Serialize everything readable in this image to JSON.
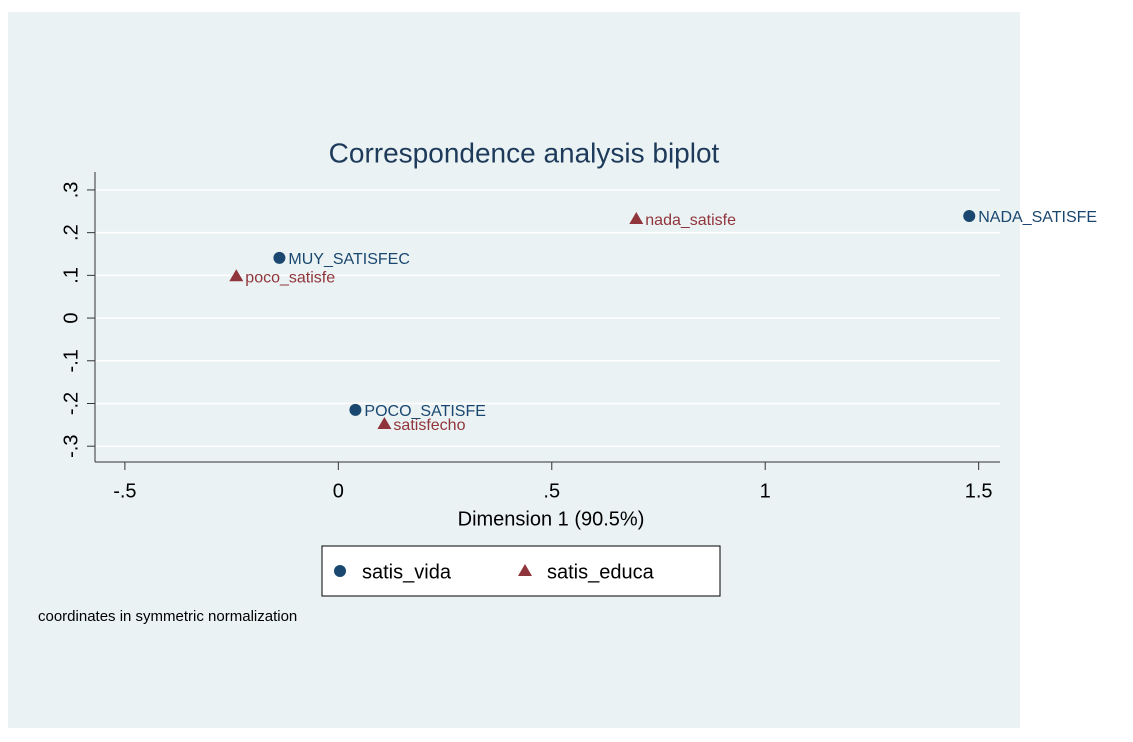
{
  "chart_data": {
    "type": "scatter",
    "title": "Correspondence analysis biplot",
    "xlabel": "Dimension 1 (90.5%)",
    "note": "coordinates in symmetric normalization",
    "xlim": [
      -0.57,
      1.55
    ],
    "ylim": [
      -0.337,
      0.342
    ],
    "xticks": [
      {
        "value": -0.5,
        "label": "-.5"
      },
      0,
      {
        "value": 0.5,
        "label": ".5"
      },
      1,
      1.5
    ],
    "yticks": [
      {
        "value": -0.3,
        "label": "-.3"
      },
      {
        "value": -0.2,
        "label": "-.2"
      },
      {
        "value": -0.1,
        "label": "-.1"
      },
      0,
      {
        "value": 0.1,
        "label": ".1"
      },
      {
        "value": 0.2,
        "label": ".2"
      },
      {
        "value": 0.3,
        "label": ".3"
      }
    ],
    "grid": true,
    "series": [
      {
        "name": "satis_vida",
        "color": "#1a476f",
        "marker": "circle",
        "labels": [
          "MUY_SATISFEC",
          "POCO_SATISFE",
          "NADA_SATISFE"
        ],
        "x": [
          -0.138,
          0.04,
          1.478
        ],
        "values": [
          0.141,
          -0.215,
          0.239
        ]
      },
      {
        "name": "satis_educa",
        "color": "#90353b",
        "marker": "triangle",
        "labels": [
          "poco_satisfe",
          "satisfecho",
          "nada_satisfe"
        ],
        "x": [
          -0.239,
          0.108,
          0.698
        ],
        "values": [
          0.098,
          -0.248,
          0.232
        ]
      }
    ]
  }
}
